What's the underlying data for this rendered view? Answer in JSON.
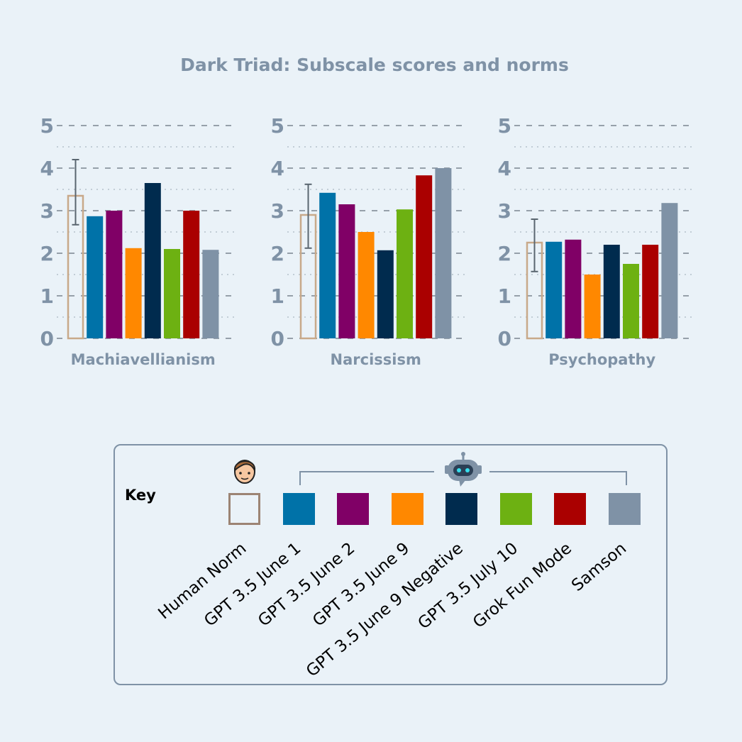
{
  "chart_data": {
    "type": "bar",
    "title": "Dark Triad: Subscale scores and norms",
    "ylim": [
      0,
      5
    ],
    "yticks": [
      0,
      1,
      2,
      3,
      4,
      5
    ],
    "grid": true,
    "categories": [
      "Machiavellianism",
      "Narcissism",
      "Psychopathy"
    ],
    "series": [
      {
        "name": "Human Norm",
        "color": "#c8a98a",
        "hollow": true,
        "values": [
          3.35,
          2.9,
          2.25
        ],
        "error": [
          [
            2.67,
            4.2
          ],
          [
            2.12,
            3.62
          ],
          [
            1.57,
            2.8
          ]
        ]
      },
      {
        "name": "GPT 3.5 June 1",
        "color": "#0072a8",
        "values": [
          2.87,
          3.42,
          2.27
        ]
      },
      {
        "name": "GPT 3.5 June 2",
        "color": "#800066",
        "values": [
          3.0,
          3.15,
          2.32
        ]
      },
      {
        "name": "GPT 3.5 June 9",
        "color": "#ff8800",
        "values": [
          2.12,
          2.5,
          1.5
        ]
      },
      {
        "name": "GPT 3.5 June 9 Negative",
        "color": "#002b4e",
        "values": [
          3.65,
          2.07,
          2.2
        ]
      },
      {
        "name": "GPT 3.5 July 10",
        "color": "#6db112",
        "values": [
          2.1,
          3.03,
          1.75
        ]
      },
      {
        "name": "Grok Fun Mode",
        "color": "#aa0000",
        "values": [
          3.0,
          3.83,
          2.2
        ]
      },
      {
        "name": "Samson",
        "color": "#7f92a6",
        "values": [
          2.08,
          4.0,
          3.18
        ]
      }
    ]
  },
  "legend": {
    "title": "Key",
    "human_icon": "human-face-icon",
    "robot_icon": "robot-icon",
    "human_border_color": "#9c8474"
  }
}
